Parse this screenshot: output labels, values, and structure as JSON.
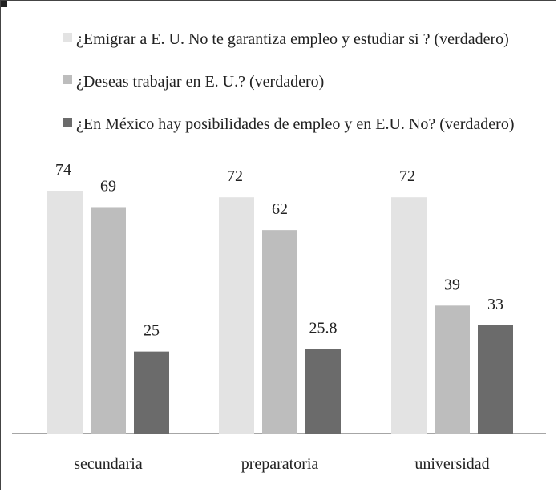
{
  "chart_data": {
    "type": "bar",
    "title": "",
    "xlabel": "",
    "ylabel": "",
    "categories": [
      "secundaria",
      "preparatoria",
      "universidad"
    ],
    "series": [
      {
        "name": "¿Emigrar a E. U. No te garantiza empleo y estudiar si ? (verdadero)",
        "values": [
          74,
          72,
          72
        ],
        "color": "#e3e3e3"
      },
      {
        "name": "¿Deseas trabajar en E. U.?  (verdadero)",
        "values": [
          69,
          62,
          39
        ],
        "color": "#bdbdbd"
      },
      {
        "name": "¿En México hay posibilidades de empleo y en E.U. No?  (verdadero)",
        "values": [
          25,
          25.8,
          33
        ],
        "color": "#6b6b6b"
      }
    ],
    "data_labels": [
      [
        "74",
        "72",
        "72"
      ],
      [
        "69",
        "62",
        "39"
      ],
      [
        "25",
        "25.8",
        "33"
      ]
    ],
    "ylim": [
      0,
      80
    ],
    "grid": false,
    "legend_position": "top"
  }
}
